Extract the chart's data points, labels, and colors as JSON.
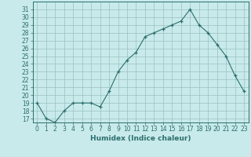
{
  "x": [
    0,
    1,
    2,
    3,
    4,
    5,
    6,
    7,
    8,
    9,
    10,
    11,
    12,
    13,
    14,
    15,
    16,
    17,
    18,
    19,
    20,
    21,
    22,
    23
  ],
  "y": [
    19,
    17,
    16.5,
    18,
    19,
    19,
    19,
    18.5,
    20.5,
    23,
    24.5,
    25.5,
    27.5,
    28,
    28.5,
    29,
    29.5,
    31,
    29,
    28,
    26.5,
    25,
    22.5,
    20.5
  ],
  "xlabel": "Humidex (Indice chaleur)",
  "line_color": "#2d6e6e",
  "marker": "+",
  "bg_color": "#c8eaea",
  "grid_color": "#9bbfbf",
  "ylim": [
    16.5,
    32
  ],
  "xlim": [
    -0.5,
    23.5
  ],
  "yticks": [
    17,
    18,
    19,
    20,
    21,
    22,
    23,
    24,
    25,
    26,
    27,
    28,
    29,
    30,
    31
  ],
  "xticks": [
    0,
    1,
    2,
    3,
    4,
    5,
    6,
    7,
    8,
    9,
    10,
    11,
    12,
    13,
    14,
    15,
    16,
    17,
    18,
    19,
    20,
    21,
    22,
    23
  ],
  "tick_fontsize": 5.5,
  "xlabel_fontsize": 6.5
}
